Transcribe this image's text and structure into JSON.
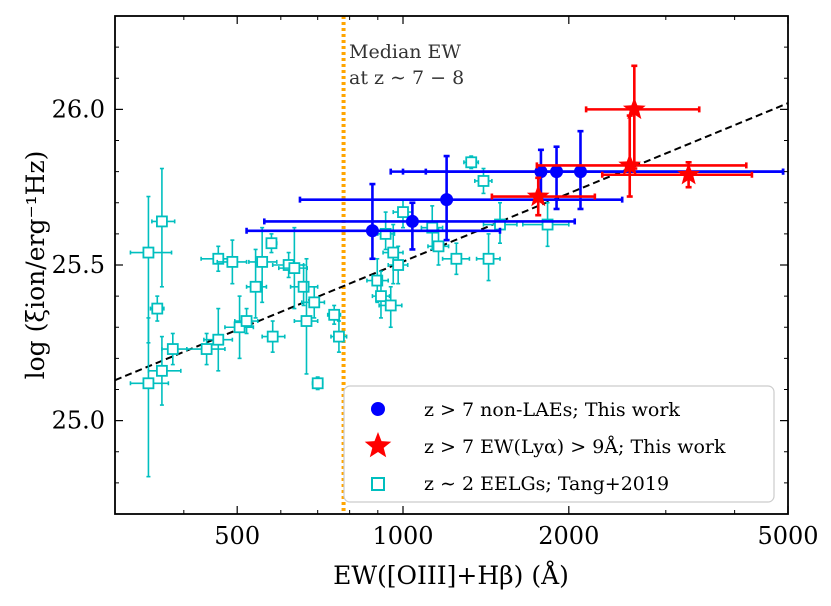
{
  "chart_data": {
    "type": "scatter",
    "xscale": "log",
    "xlim": [
      300,
      5000
    ],
    "ylim": [
      24.7,
      26.3
    ],
    "xlabel": "EW([OIII]+Hβ) (Å)",
    "ylabel": "log (ξion/erg⁻¹Hz)",
    "xticks": [
      {
        "value": 500,
        "label": "500"
      },
      {
        "value": 1000,
        "label": "1000"
      },
      {
        "value": 2000,
        "label": "2000"
      },
      {
        "value": 5000,
        "label": "5000"
      }
    ],
    "yticks": [
      {
        "value": 25.0,
        "label": "25.0"
      },
      {
        "value": 25.5,
        "label": "25.5"
      },
      {
        "value": 26.0,
        "label": "26.0"
      }
    ],
    "median_line": {
      "x": 780,
      "color": "#ffa500",
      "label_line1": "Median EW",
      "label_line2": "at z ∼ 7 − 8"
    },
    "fit_line": {
      "points": [
        [
          300,
          25.13
        ],
        [
          5000,
          26.02
        ]
      ],
      "color": "#000000",
      "style": "dashed"
    },
    "series": [
      {
        "name": "z > 7 non-LAEs; This work",
        "marker": "circle",
        "color": "#0000ff",
        "points": [
          {
            "x": 880,
            "y": 25.61,
            "xlo": 520,
            "xhi": 1500,
            "ylo": 25.52,
            "yhi": 25.76
          },
          {
            "x": 1040,
            "y": 25.64,
            "xlo": 560,
            "xhi": 2050,
            "ylo": 25.55,
            "yhi": 25.7
          },
          {
            "x": 1200,
            "y": 25.71,
            "xlo": 650,
            "xhi": 2500,
            "ylo": 25.58,
            "yhi": 25.85
          },
          {
            "x": 1780,
            "y": 25.8,
            "xlo": 950,
            "xhi": 4900,
            "ylo": 25.71,
            "yhi": 25.87
          },
          {
            "x": 1900,
            "y": 25.8,
            "xlo": 1000,
            "xhi": 4900,
            "ylo": 25.68,
            "yhi": 25.88
          },
          {
            "x": 2100,
            "y": 25.8,
            "xlo": 1100,
            "xhi": 4900,
            "ylo": 25.68,
            "yhi": 25.93
          }
        ]
      },
      {
        "name": "z > 7 EW(Lyα) > 9Å; This work",
        "marker": "star",
        "color": "#ff0000",
        "points": [
          {
            "x": 2630,
            "y": 26.0,
            "xlo": 2150,
            "xhi": 3450,
            "ylo": 25.81,
            "yhi": 26.14
          },
          {
            "x": 2580,
            "y": 25.82,
            "xlo": 1750,
            "xhi": 4200,
            "ylo": 25.72,
            "yhi": 25.98
          },
          {
            "x": 1760,
            "y": 25.72,
            "xlo": 1450,
            "xhi": 2230,
            "ylo": 25.66,
            "yhi": 25.78
          },
          {
            "x": 3300,
            "y": 25.79,
            "xlo": 2300,
            "xhi": 4300,
            "ylo": 25.75,
            "yhi": 25.83
          }
        ]
      },
      {
        "name": "z ∼ 2 EELGs; Tang+2019",
        "marker": "open-square",
        "color": "#00bfbf",
        "points": [
          {
            "x": 345,
            "y": 25.54,
            "xlo": 320,
            "xhi": 380,
            "ylo": 25.25,
            "yhi": 25.72
          },
          {
            "x": 365,
            "y": 25.64,
            "xlo": 350,
            "xhi": 385,
            "ylo": 25.43,
            "yhi": 25.81
          },
          {
            "x": 358,
            "y": 25.36,
            "xlo": 348,
            "xhi": 368,
            "ylo": 25.32,
            "yhi": 25.4
          },
          {
            "x": 345,
            "y": 25.12,
            "xlo": 320,
            "xhi": 375,
            "ylo": 24.82,
            "yhi": 25.33
          },
          {
            "x": 365,
            "y": 25.16,
            "xlo": 345,
            "xhi": 395,
            "ylo": 25.05,
            "yhi": 25.27
          },
          {
            "x": 382,
            "y": 25.23,
            "xlo": 365,
            "xhi": 405,
            "ylo": 25.18,
            "yhi": 25.28
          },
          {
            "x": 440,
            "y": 25.23,
            "xlo": 405,
            "xhi": 475,
            "ylo": 25.18,
            "yhi": 25.28
          },
          {
            "x": 462,
            "y": 25.52,
            "xlo": 430,
            "xhi": 495,
            "ylo": 25.48,
            "yhi": 25.56
          },
          {
            "x": 490,
            "y": 25.51,
            "xlo": 460,
            "xhi": 520,
            "ylo": 25.44,
            "yhi": 25.58
          },
          {
            "x": 462,
            "y": 25.26,
            "xlo": 435,
            "xhi": 490,
            "ylo": 25.16,
            "yhi": 25.36
          },
          {
            "x": 505,
            "y": 25.3,
            "xlo": 475,
            "xhi": 535,
            "ylo": 25.2,
            "yhi": 25.4
          },
          {
            "x": 520,
            "y": 25.32,
            "xlo": 495,
            "xhi": 545,
            "ylo": 25.28,
            "yhi": 25.36
          },
          {
            "x": 540,
            "y": 25.43,
            "xlo": 520,
            "xhi": 565,
            "ylo": 25.33,
            "yhi": 25.55
          },
          {
            "x": 555,
            "y": 25.51,
            "xlo": 525,
            "xhi": 590,
            "ylo": 25.38,
            "yhi": 25.62
          },
          {
            "x": 577,
            "y": 25.57,
            "xlo": 565,
            "xhi": 590,
            "ylo": 25.54,
            "yhi": 25.6
          },
          {
            "x": 580,
            "y": 25.27,
            "xlo": 555,
            "xhi": 610,
            "ylo": 25.22,
            "yhi": 25.32
          },
          {
            "x": 620,
            "y": 25.5,
            "xlo": 580,
            "xhi": 660,
            "ylo": 25.46,
            "yhi": 25.54
          },
          {
            "x": 635,
            "y": 25.49,
            "xlo": 595,
            "xhi": 670,
            "ylo": 25.36,
            "yhi": 25.62
          },
          {
            "x": 660,
            "y": 25.43,
            "xlo": 625,
            "xhi": 700,
            "ylo": 25.37,
            "yhi": 25.5
          },
          {
            "x": 668,
            "y": 25.32,
            "xlo": 635,
            "xhi": 700,
            "ylo": 25.15,
            "yhi": 25.52
          },
          {
            "x": 690,
            "y": 25.38,
            "xlo": 655,
            "xhi": 720,
            "ylo": 25.33,
            "yhi": 25.43
          },
          {
            "x": 700,
            "y": 25.12,
            "xlo": 685,
            "xhi": 715,
            "ylo": 25.1,
            "yhi": 25.14
          },
          {
            "x": 750,
            "y": 25.34,
            "xlo": 730,
            "xhi": 770,
            "ylo": 25.31,
            "yhi": 25.37
          },
          {
            "x": 765,
            "y": 25.27,
            "xlo": 740,
            "xhi": 790,
            "ylo": 25.22,
            "yhi": 25.32
          },
          {
            "x": 898,
            "y": 25.45,
            "xlo": 860,
            "xhi": 940,
            "ylo": 25.38,
            "yhi": 25.52
          },
          {
            "x": 912,
            "y": 25.4,
            "xlo": 880,
            "xhi": 945,
            "ylo": 25.33,
            "yhi": 25.48
          },
          {
            "x": 930,
            "y": 25.6,
            "xlo": 900,
            "xhi": 965,
            "ylo": 25.55,
            "yhi": 25.67
          },
          {
            "x": 950,
            "y": 25.37,
            "xlo": 905,
            "xhi": 995,
            "ylo": 25.3,
            "yhi": 25.43
          },
          {
            "x": 960,
            "y": 25.54,
            "xlo": 920,
            "xhi": 1000,
            "ylo": 25.44,
            "yhi": 25.63
          },
          {
            "x": 980,
            "y": 25.5,
            "xlo": 940,
            "xhi": 1020,
            "ylo": 25.44,
            "yhi": 25.56
          },
          {
            "x": 1000,
            "y": 25.67,
            "xlo": 960,
            "xhi": 1040,
            "ylo": 25.62,
            "yhi": 25.71
          },
          {
            "x": 1130,
            "y": 25.62,
            "xlo": 1080,
            "xhi": 1180,
            "ylo": 25.55,
            "yhi": 25.69
          },
          {
            "x": 1160,
            "y": 25.56,
            "xlo": 1110,
            "xhi": 1210,
            "ylo": 25.5,
            "yhi": 25.62
          },
          {
            "x": 1250,
            "y": 25.52,
            "xlo": 1180,
            "xhi": 1320,
            "ylo": 25.47,
            "yhi": 25.57
          },
          {
            "x": 1330,
            "y": 25.83,
            "xlo": 1290,
            "xhi": 1370,
            "ylo": 25.81,
            "yhi": 25.85
          },
          {
            "x": 1400,
            "y": 25.77,
            "xlo": 1350,
            "xhi": 1450,
            "ylo": 25.73,
            "yhi": 25.81
          },
          {
            "x": 1430,
            "y": 25.52,
            "xlo": 1360,
            "xhi": 1500,
            "ylo": 25.45,
            "yhi": 25.6
          },
          {
            "x": 1500,
            "y": 25.63,
            "xlo": 1400,
            "xhi": 1610,
            "ylo": 25.57,
            "yhi": 25.7
          },
          {
            "x": 1830,
            "y": 25.63,
            "xlo": 1650,
            "xhi": 2000,
            "ylo": 25.56,
            "yhi": 25.7
          }
        ]
      }
    ],
    "legend_position": "lower-right"
  }
}
